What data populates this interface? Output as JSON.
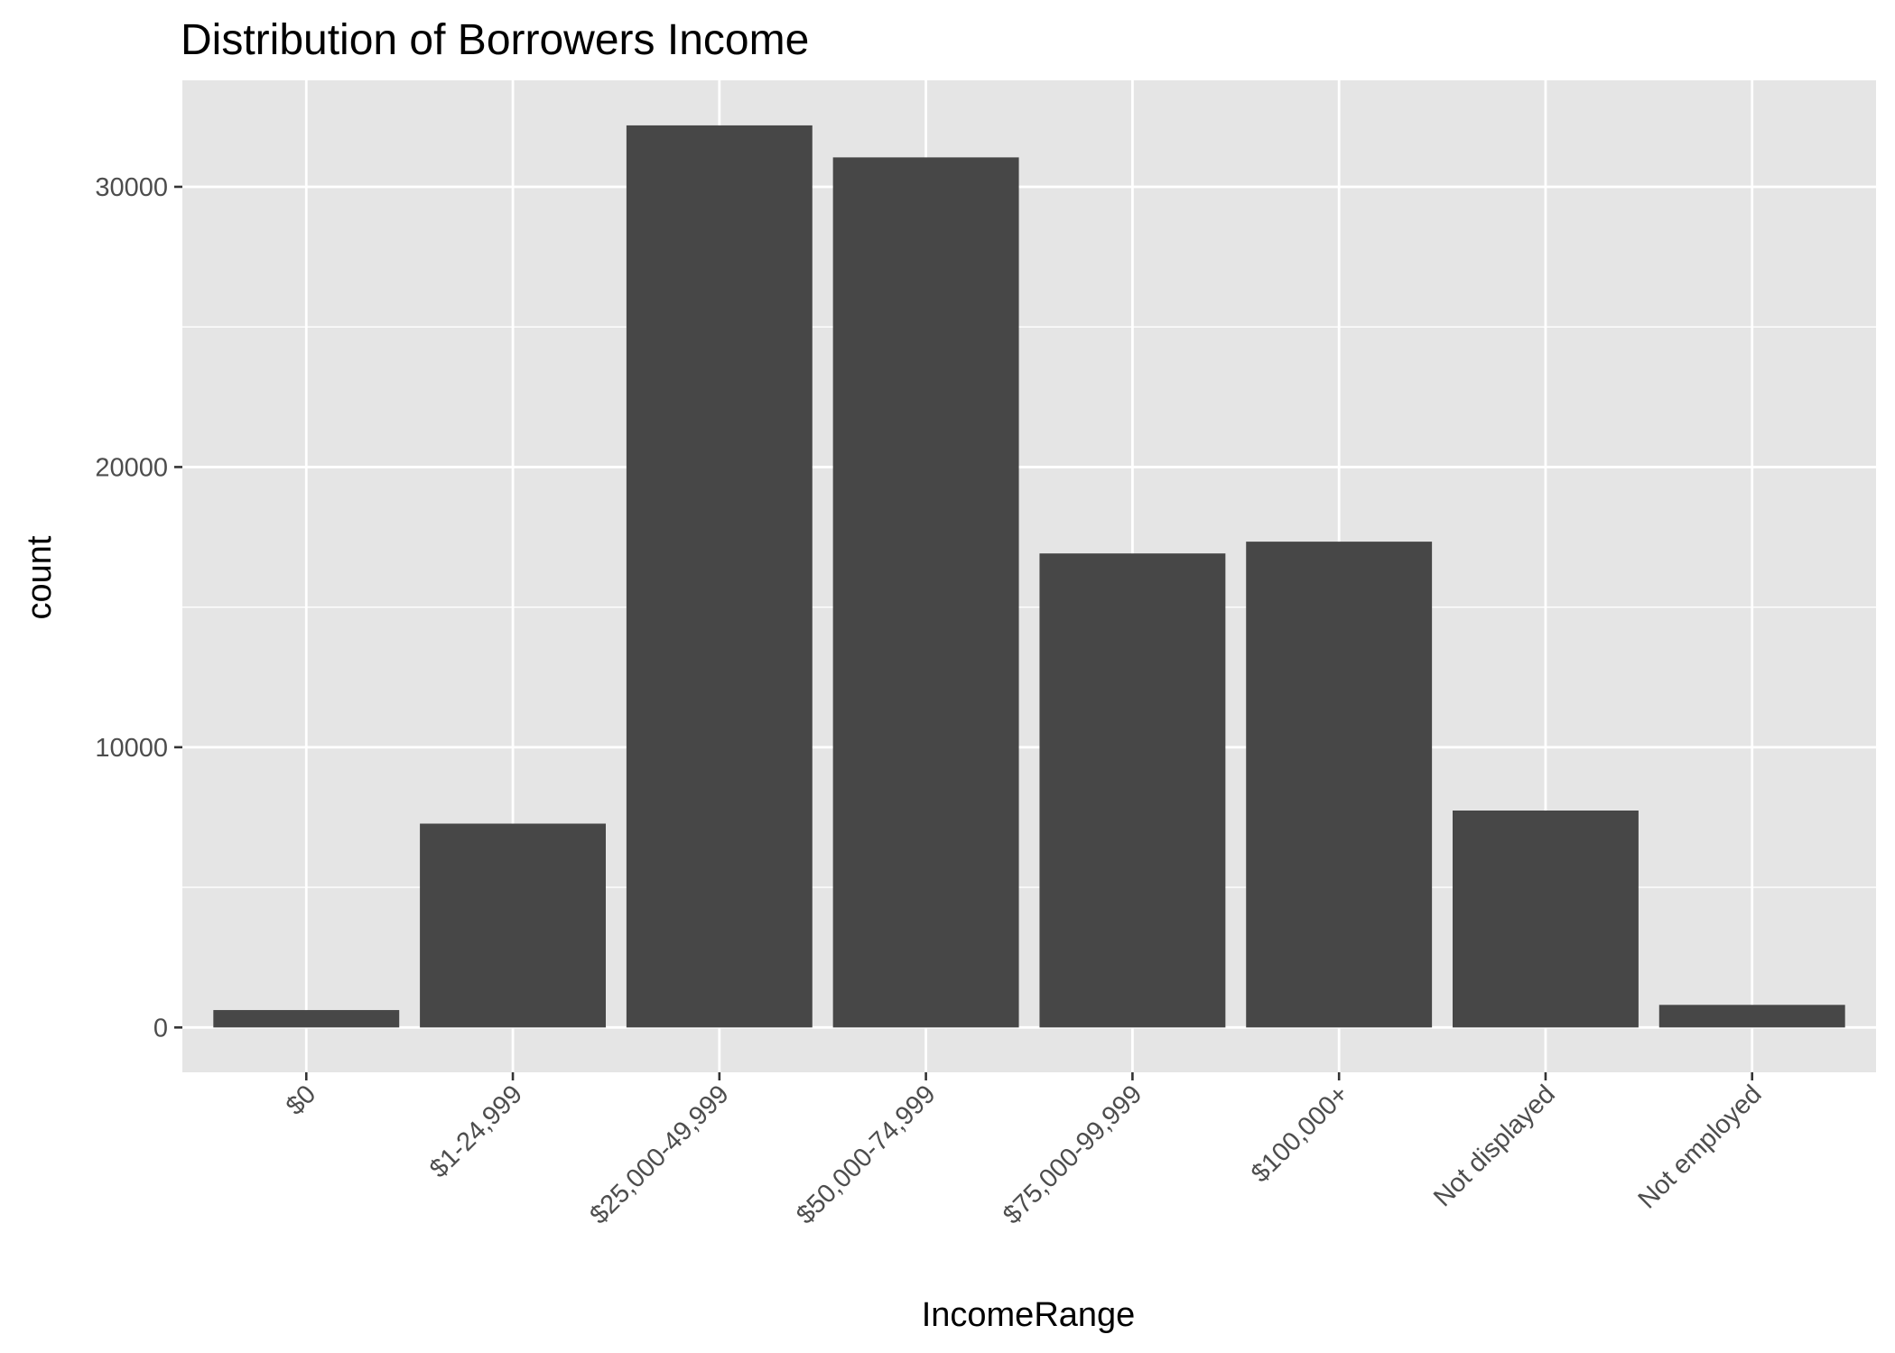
{
  "chart_data": {
    "type": "bar",
    "title": "Distribution of Borrowers Income",
    "xlabel": "IncomeRange",
    "ylabel": "count",
    "categories": [
      "$0",
      "$1-24,999",
      "$25,000-49,999",
      "$50,000-74,999",
      "$75,000-99,999",
      "$100,000+",
      "Not displayed",
      "Not employed"
    ],
    "values": [
      621,
      7274,
      32192,
      31050,
      16916,
      17337,
      7741,
      806
    ],
    "yticks": [
      0,
      10000,
      20000,
      30000
    ],
    "ylim": [
      -1600,
      33800
    ],
    "grid": true,
    "legend": "none",
    "colors": {
      "bar": "#474747",
      "panel": "#e5e5e5",
      "grid": "#ffffff",
      "tick_text": "#4d4d4d",
      "tick_mark": "#333333"
    }
  }
}
